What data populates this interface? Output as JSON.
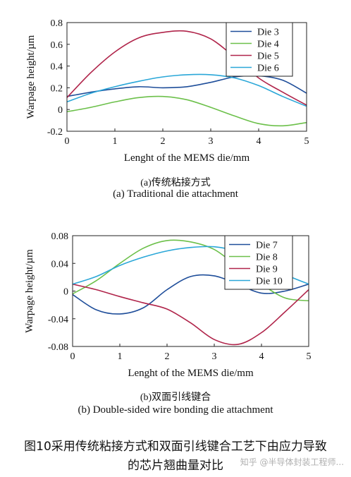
{
  "chart_data": [
    {
      "type": "line",
      "xlabel": "Lenght of the MEMS die/mm",
      "ylabel": "Warpage height/µm",
      "xlim": [
        0,
        5
      ],
      "ylim": [
        -0.2,
        0.8
      ],
      "xticks": [
        "0",
        "1",
        "2",
        "3",
        "4",
        "5"
      ],
      "yticks": [
        "-0.2",
        "0",
        "0.2",
        "0.4",
        "0.6",
        "0.8"
      ],
      "legend_position": "top-right",
      "grid": false,
      "caption_cn": "(a)传统粘接方式",
      "caption_en": "(a) Traditional die attachment",
      "series": [
        {
          "name": "Die 3",
          "color": "#1f4e9a",
          "x": [
            0,
            0.5,
            1,
            1.5,
            2,
            2.5,
            3,
            3.5,
            4,
            4.5,
            5
          ],
          "y": [
            0.12,
            0.16,
            0.19,
            0.21,
            0.2,
            0.21,
            0.25,
            0.3,
            0.31,
            0.27,
            0.15
          ]
        },
        {
          "name": "Die 4",
          "color": "#6cc04a",
          "x": [
            0,
            0.5,
            1,
            1.5,
            2,
            2.5,
            3,
            3.5,
            4,
            4.5,
            5
          ],
          "y": [
            -0.02,
            0.02,
            0.07,
            0.11,
            0.12,
            0.09,
            0.02,
            -0.06,
            -0.13,
            -0.15,
            -0.12
          ]
        },
        {
          "name": "Die 5",
          "color": "#b0244a",
          "x": [
            0,
            0.5,
            1,
            1.5,
            2,
            2.5,
            3,
            3.5,
            4,
            4.5,
            5
          ],
          "y": [
            0.11,
            0.34,
            0.53,
            0.66,
            0.71,
            0.72,
            0.65,
            0.48,
            0.29,
            0.16,
            0.04
          ]
        },
        {
          "name": "Die 6",
          "color": "#2aa7d8",
          "x": [
            0,
            0.5,
            1,
            1.5,
            2,
            2.5,
            3,
            3.5,
            4,
            4.5,
            5
          ],
          "y": [
            0.07,
            0.15,
            0.21,
            0.26,
            0.3,
            0.32,
            0.32,
            0.29,
            0.22,
            0.12,
            0.03
          ]
        }
      ]
    },
    {
      "type": "line",
      "xlabel": "Lenght of the MEMS die/mm",
      "ylabel": "Warpage height/µm",
      "xlim": [
        0,
        5
      ],
      "ylim": [
        -0.08,
        0.08
      ],
      "xticks": [
        "0",
        "1",
        "2",
        "3",
        "4",
        "5"
      ],
      "yticks": [
        "-0.08",
        "-0.04",
        "0",
        "0.04",
        "0.08"
      ],
      "legend_position": "top-right",
      "grid": false,
      "caption_cn": "(b)双面引线键合",
      "caption_en": "(b) Double-sided wire bonding die attachment",
      "series": [
        {
          "name": "Die 7",
          "color": "#1f4e9a",
          "x": [
            0,
            0.5,
            1,
            1.5,
            2,
            2.5,
            3,
            3.5,
            4,
            4.5,
            5
          ],
          "y": [
            -0.005,
            -0.027,
            -0.033,
            -0.024,
            0.002,
            0.021,
            0.022,
            0.01,
            -0.003,
            0.0,
            0.01
          ]
        },
        {
          "name": "Die 8",
          "color": "#6cc04a",
          "x": [
            0,
            0.5,
            1,
            1.5,
            2,
            2.5,
            3,
            3.5,
            4,
            4.5,
            5
          ],
          "y": [
            -0.004,
            0.015,
            0.04,
            0.062,
            0.073,
            0.071,
            0.06,
            0.035,
            0.01,
            -0.01,
            -0.014
          ]
        },
        {
          "name": "Die 9",
          "color": "#b0244a",
          "x": [
            0,
            0.5,
            1,
            1.5,
            2,
            2.5,
            3,
            3.5,
            4,
            4.5,
            5
          ],
          "y": [
            0.01,
            0.002,
            -0.008,
            -0.017,
            -0.026,
            -0.046,
            -0.07,
            -0.077,
            -0.06,
            -0.03,
            0.002
          ]
        },
        {
          "name": "Die 10",
          "color": "#2aa7d8",
          "x": [
            0,
            0.5,
            1,
            1.5,
            2,
            2.5,
            3,
            3.5,
            4,
            4.5,
            5
          ],
          "y": [
            0.01,
            0.021,
            0.037,
            0.049,
            0.058,
            0.063,
            0.064,
            0.057,
            0.042,
            0.024,
            0.01
          ]
        }
      ]
    }
  ],
  "figure_caption_line1": "图10采用传统粘接方式和双面引线键合工艺下由应力导致",
  "figure_caption_line2": "的芯片翘曲量对比",
  "watermark": "知乎 @半导体封装工程师..."
}
